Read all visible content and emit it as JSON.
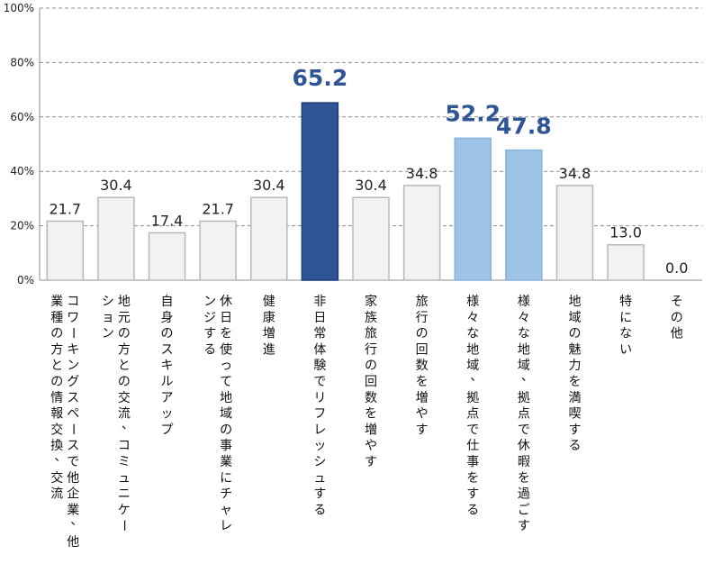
{
  "chart_data": {
    "type": "bar",
    "ylim": [
      0,
      100
    ],
    "yticks": [
      "0%",
      "20%",
      "40%",
      "60%",
      "80%",
      "100%"
    ],
    "grid": true,
    "categories": [
      [
        "コワーキングスペースで他企業、他",
        "業種の方との情報交換、交流"
      ],
      [
        "地元の方との交流、コミュニケー",
        "ション"
      ],
      [
        "自身のスキルアップ"
      ],
      [
        "休日を使って地域の事業にチャレ",
        "ンジする"
      ],
      [
        "健康増進"
      ],
      [
        "非日常体験でリフレッシュする"
      ],
      [
        "家族旅行の回数を増やす"
      ],
      [
        "旅行の回数を増やす"
      ],
      [
        "様々な地域、拠点で仕事をする"
      ],
      [
        "様々な地域、拠点で休暇を過ごす"
      ],
      [
        "地域の魅力を満喫する"
      ],
      [
        "特にない"
      ],
      [
        "その他"
      ]
    ],
    "values": [
      21.7,
      30.4,
      17.4,
      21.7,
      30.4,
      65.2,
      30.4,
      34.8,
      52.2,
      47.8,
      34.8,
      13.0,
      0.0
    ],
    "value_labels": [
      "21.7",
      "30.4",
      "17.4",
      "21.7",
      "30.4",
      "65.2",
      "30.4",
      "34.8",
      "52.2",
      "47.8",
      "34.8",
      "13.0",
      "0.0"
    ],
    "highlight": [
      "normal",
      "normal",
      "normal",
      "normal",
      "normal",
      "primary",
      "normal",
      "normal",
      "secondary",
      "secondary",
      "normal",
      "normal",
      "normal"
    ],
    "colors": {
      "normal_fill": "#f2f2f2",
      "normal_stroke": "#b8b8b8",
      "primary_fill": "#2f5597",
      "primary_stroke": "#1f3d73",
      "secondary_fill": "#9dc3e6",
      "secondary_stroke": "#8ab3d9",
      "highlight_label": "#2f5597",
      "grid": "#8c8c8c",
      "axis": "#8c8c8c"
    }
  }
}
